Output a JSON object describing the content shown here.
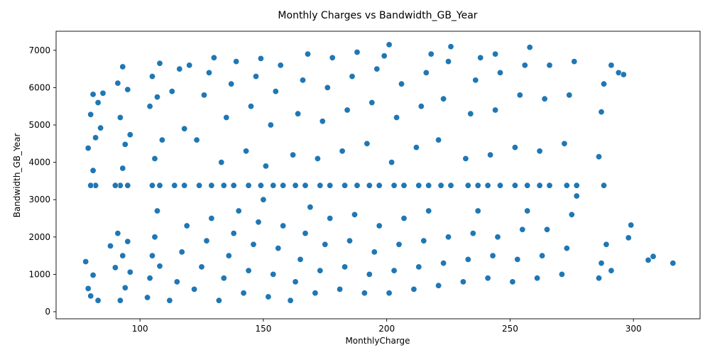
{
  "chart_data": {
    "type": "scatter",
    "title": "Monthly Charges vs Bandwidth_GB_Year",
    "xlabel": "MonthlyCharge",
    "ylabel": "Bandwidth_GB_Year",
    "xlim": [
      66,
      327
    ],
    "ylim": [
      -190,
      7510
    ],
    "xticks": [
      100,
      150,
      200,
      250,
      300
    ],
    "yticks": [
      0,
      1000,
      2000,
      3000,
      4000,
      5000,
      6000,
      7000
    ],
    "grid": false,
    "marker_color": "#1f77b4",
    "marker_edge_color": "#ffffff",
    "points": [
      [
        78,
        1340
      ],
      [
        79,
        620
      ],
      [
        80,
        420
      ],
      [
        81,
        980
      ],
      [
        83,
        300
      ],
      [
        79,
        4380
      ],
      [
        80,
        5280
      ],
      [
        81,
        5820
      ],
      [
        82,
        4660
      ],
      [
        83,
        5600
      ],
      [
        84,
        4920
      ],
      [
        85,
        5850
      ],
      [
        82,
        3380
      ],
      [
        80,
        3380
      ],
      [
        81,
        3780
      ],
      [
        88,
        1760
      ],
      [
        90,
        1180
      ],
      [
        91,
        2100
      ],
      [
        92,
        300
      ],
      [
        93,
        1500
      ],
      [
        94,
        640
      ],
      [
        95,
        1880
      ],
      [
        96,
        1060
      ],
      [
        92,
        5200
      ],
      [
        93,
        6560
      ],
      [
        94,
        4480
      ],
      [
        95,
        5950
      ],
      [
        96,
        4740
      ],
      [
        91,
        6120
      ],
      [
        93,
        3840
      ],
      [
        92,
        3380
      ],
      [
        95,
        3380
      ],
      [
        90,
        3380
      ],
      [
        103,
        380
      ],
      [
        104,
        900
      ],
      [
        105,
        1500
      ],
      [
        106,
        2000
      ],
      [
        107,
        2700
      ],
      [
        108,
        1220
      ],
      [
        104,
        5500
      ],
      [
        105,
        6300
      ],
      [
        106,
        4100
      ],
      [
        107,
        5750
      ],
      [
        108,
        6650
      ],
      [
        109,
        4600
      ],
      [
        105,
        3380
      ],
      [
        108,
        3380
      ],
      [
        112,
        300
      ],
      [
        115,
        800
      ],
      [
        117,
        1600
      ],
      [
        119,
        2300
      ],
      [
        113,
        5900
      ],
      [
        116,
        6500
      ],
      [
        118,
        4900
      ],
      [
        120,
        6600
      ],
      [
        114,
        3380
      ],
      [
        118,
        3380
      ],
      [
        122,
        600
      ],
      [
        125,
        1200
      ],
      [
        127,
        1900
      ],
      [
        129,
        2500
      ],
      [
        123,
        4600
      ],
      [
        126,
        5800
      ],
      [
        128,
        6400
      ],
      [
        130,
        6800
      ],
      [
        124,
        3380
      ],
      [
        129,
        3380
      ],
      [
        132,
        300
      ],
      [
        134,
        900
      ],
      [
        136,
        1500
      ],
      [
        138,
        2100
      ],
      [
        140,
        2700
      ],
      [
        133,
        4000
      ],
      [
        135,
        5200
      ],
      [
        137,
        6100
      ],
      [
        139,
        6700
      ],
      [
        134,
        3380
      ],
      [
        138,
        3380
      ],
      [
        142,
        500
      ],
      [
        144,
        1100
      ],
      [
        146,
        1800
      ],
      [
        148,
        2400
      ],
      [
        150,
        3000
      ],
      [
        143,
        4300
      ],
      [
        145,
        5500
      ],
      [
        147,
        6300
      ],
      [
        149,
        6780
      ],
      [
        144,
        3380
      ],
      [
        149,
        3380
      ],
      [
        152,
        400
      ],
      [
        154,
        1000
      ],
      [
        156,
        1700
      ],
      [
        158,
        2300
      ],
      [
        151,
        3900
      ],
      [
        153,
        5000
      ],
      [
        155,
        5900
      ],
      [
        157,
        6600
      ],
      [
        154,
        3380
      ],
      [
        158,
        3380
      ],
      [
        161,
        300
      ],
      [
        163,
        800
      ],
      [
        165,
        1400
      ],
      [
        167,
        2100
      ],
      [
        169,
        2800
      ],
      [
        162,
        4200
      ],
      [
        164,
        5300
      ],
      [
        166,
        6200
      ],
      [
        168,
        6900
      ],
      [
        163,
        3380
      ],
      [
        167,
        3380
      ],
      [
        171,
        500
      ],
      [
        173,
        1100
      ],
      [
        175,
        1800
      ],
      [
        177,
        2500
      ],
      [
        172,
        4100
      ],
      [
        174,
        5100
      ],
      [
        176,
        6000
      ],
      [
        178,
        6800
      ],
      [
        173,
        3380
      ],
      [
        177,
        3380
      ],
      [
        181,
        600
      ],
      [
        183,
        1200
      ],
      [
        185,
        1900
      ],
      [
        187,
        2600
      ],
      [
        182,
        4300
      ],
      [
        184,
        5400
      ],
      [
        186,
        6300
      ],
      [
        188,
        6950
      ],
      [
        183,
        3380
      ],
      [
        188,
        3380
      ],
      [
        191,
        500
      ],
      [
        193,
        1000
      ],
      [
        195,
        1600
      ],
      [
        197,
        2300
      ],
      [
        192,
        4500
      ],
      [
        194,
        5600
      ],
      [
        196,
        6500
      ],
      [
        199,
        6850
      ],
      [
        193,
        3380
      ],
      [
        197,
        3380
      ],
      [
        201,
        500
      ],
      [
        203,
        1100
      ],
      [
        205,
        1800
      ],
      [
        207,
        2500
      ],
      [
        202,
        4000
      ],
      [
        204,
        5200
      ],
      [
        206,
        6100
      ],
      [
        201,
        7150
      ],
      [
        203,
        3380
      ],
      [
        207,
        3380
      ],
      [
        211,
        600
      ],
      [
        213,
        1200
      ],
      [
        215,
        1900
      ],
      [
        217,
        2700
      ],
      [
        212,
        4400
      ],
      [
        214,
        5500
      ],
      [
        216,
        6400
      ],
      [
        218,
        6900
      ],
      [
        213,
        3380
      ],
      [
        217,
        3380
      ],
      [
        221,
        700
      ],
      [
        223,
        1300
      ],
      [
        225,
        2000
      ],
      [
        221,
        4600
      ],
      [
        223,
        5700
      ],
      [
        225,
        6700
      ],
      [
        226,
        7100
      ],
      [
        222,
        3380
      ],
      [
        226,
        3380
      ],
      [
        231,
        800
      ],
      [
        233,
        1400
      ],
      [
        235,
        2100
      ],
      [
        237,
        2700
      ],
      [
        232,
        4100
      ],
      [
        234,
        5300
      ],
      [
        236,
        6200
      ],
      [
        238,
        6800
      ],
      [
        233,
        3380
      ],
      [
        237,
        3380
      ],
      [
        241,
        900
      ],
      [
        243,
        1500
      ],
      [
        245,
        2000
      ],
      [
        242,
        4200
      ],
      [
        244,
        5400
      ],
      [
        246,
        6400
      ],
      [
        244,
        6900
      ],
      [
        241,
        3380
      ],
      [
        246,
        3380
      ],
      [
        251,
        800
      ],
      [
        253,
        1400
      ],
      [
        255,
        2200
      ],
      [
        257,
        2700
      ],
      [
        252,
        4400
      ],
      [
        254,
        5800
      ],
      [
        256,
        6600
      ],
      [
        258,
        7080
      ],
      [
        252,
        3380
      ],
      [
        257,
        3380
      ],
      [
        261,
        900
      ],
      [
        263,
        1500
      ],
      [
        265,
        2200
      ],
      [
        262,
        4300
      ],
      [
        264,
        5700
      ],
      [
        266,
        6600
      ],
      [
        262,
        3380
      ],
      [
        266,
        3380
      ],
      [
        271,
        1000
      ],
      [
        273,
        1700
      ],
      [
        275,
        2600
      ],
      [
        277,
        3100
      ],
      [
        272,
        4500
      ],
      [
        274,
        5800
      ],
      [
        276,
        6700
      ],
      [
        273,
        3380
      ],
      [
        277,
        3380
      ],
      [
        286,
        900
      ],
      [
        287,
        1300
      ],
      [
        289,
        1800
      ],
      [
        291,
        1100
      ],
      [
        286,
        4150
      ],
      [
        287,
        5350
      ],
      [
        288,
        6100
      ],
      [
        291,
        6600
      ],
      [
        288,
        3380
      ],
      [
        294,
        6400
      ],
      [
        296,
        6350
      ],
      [
        298,
        1980
      ],
      [
        299,
        2320
      ],
      [
        306,
        1380
      ],
      [
        308,
        1480
      ],
      [
        316,
        1300
      ]
    ]
  }
}
